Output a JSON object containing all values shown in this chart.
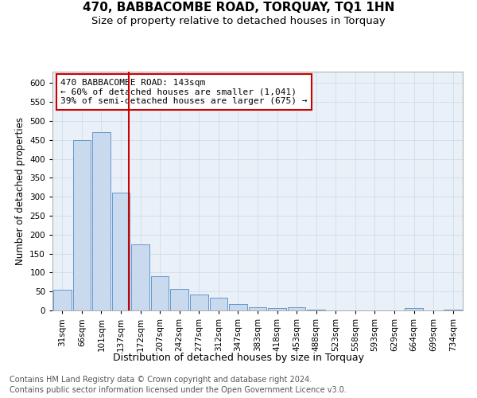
{
  "title1": "470, BABBACOMBE ROAD, TORQUAY, TQ1 1HN",
  "title2": "Size of property relative to detached houses in Torquay",
  "xlabel": "Distribution of detached houses by size in Torquay",
  "ylabel": "Number of detached properties",
  "categories": [
    "31sqm",
    "66sqm",
    "101sqm",
    "137sqm",
    "172sqm",
    "207sqm",
    "242sqm",
    "277sqm",
    "312sqm",
    "347sqm",
    "383sqm",
    "418sqm",
    "453sqm",
    "488sqm",
    "523sqm",
    "558sqm",
    "593sqm",
    "629sqm",
    "664sqm",
    "699sqm",
    "734sqm"
  ],
  "values": [
    55,
    450,
    470,
    310,
    175,
    90,
    57,
    42,
    33,
    16,
    8,
    6,
    8,
    2,
    1,
    1,
    1,
    0,
    6,
    0,
    2
  ],
  "bar_color": "#c9d9ee",
  "bar_edge_color": "#6699cc",
  "vline_x": 3.42,
  "vline_color": "#cc0000",
  "annotation_text": "470 BABBACOMBE ROAD: 143sqm\n← 60% of detached houses are smaller (1,041)\n39% of semi-detached houses are larger (675) →",
  "annotation_box_color": "#cc0000",
  "ylim": [
    0,
    630
  ],
  "yticks": [
    0,
    50,
    100,
    150,
    200,
    250,
    300,
    350,
    400,
    450,
    500,
    550,
    600
  ],
  "grid_color": "#c8d8e8",
  "bg_color": "#eaf0f8",
  "footer1": "Contains HM Land Registry data © Crown copyright and database right 2024.",
  "footer2": "Contains public sector information licensed under the Open Government Licence v3.0.",
  "title1_fontsize": 11,
  "title2_fontsize": 9.5,
  "xlabel_fontsize": 9,
  "ylabel_fontsize": 8.5,
  "tick_fontsize": 7.5,
  "annot_fontsize": 8,
  "footer_fontsize": 7
}
